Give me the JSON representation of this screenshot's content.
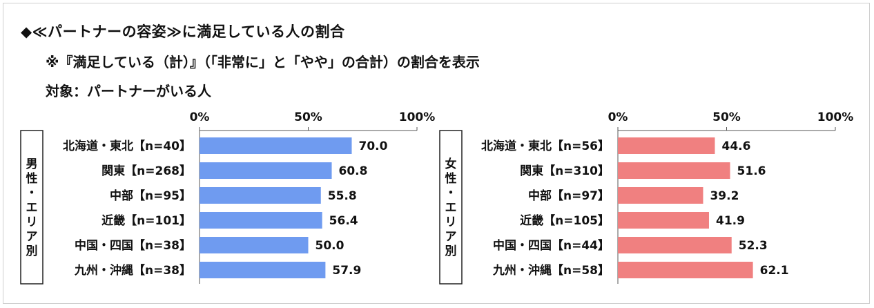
{
  "header": {
    "title": "◆≪パートナーの容姿≫に満足している人の割合",
    "note": "※『満足している（計）』（「非常に」と「やや」の合計）の割合を表示",
    "target": "対象：パートナーがいる人"
  },
  "colors": {
    "male_bar": "#6f9bf0",
    "female_bar": "#f08080",
    "axis": "#555555"
  },
  "chart_data": [
    {
      "type": "bar",
      "orientation": "horizontal",
      "group_label": "男性・エリア別",
      "xlim": [
        0,
        100
      ],
      "ticks": [
        "0%",
        "50%",
        "100%"
      ],
      "grid": false,
      "categories": [
        "北海道・東北【n=40】",
        "関東【n=268】",
        "中部【n=95】",
        "近畿【n=101】",
        "中国・四国【n=38】",
        "九州・沖縄【n=38】"
      ],
      "values": [
        70.0,
        60.8,
        55.8,
        56.4,
        50.0,
        57.9
      ],
      "value_labels": [
        "70.0",
        "60.8",
        "55.8",
        "56.4",
        "50.0",
        "57.9"
      ]
    },
    {
      "type": "bar",
      "orientation": "horizontal",
      "group_label": "女性・エリア別",
      "xlim": [
        0,
        100
      ],
      "ticks": [
        "0%",
        "50%",
        "100%"
      ],
      "grid": false,
      "categories": [
        "北海道・東北【n=56】",
        "関東【n=310】",
        "中部【n=97】",
        "近畿【n=105】",
        "中国・四国【n=44】",
        "九州・沖縄【n=58】"
      ],
      "values": [
        44.6,
        51.6,
        39.2,
        41.9,
        52.3,
        62.1
      ],
      "value_labels": [
        "44.6",
        "51.6",
        "39.2",
        "41.9",
        "52.3",
        "62.1"
      ]
    }
  ]
}
